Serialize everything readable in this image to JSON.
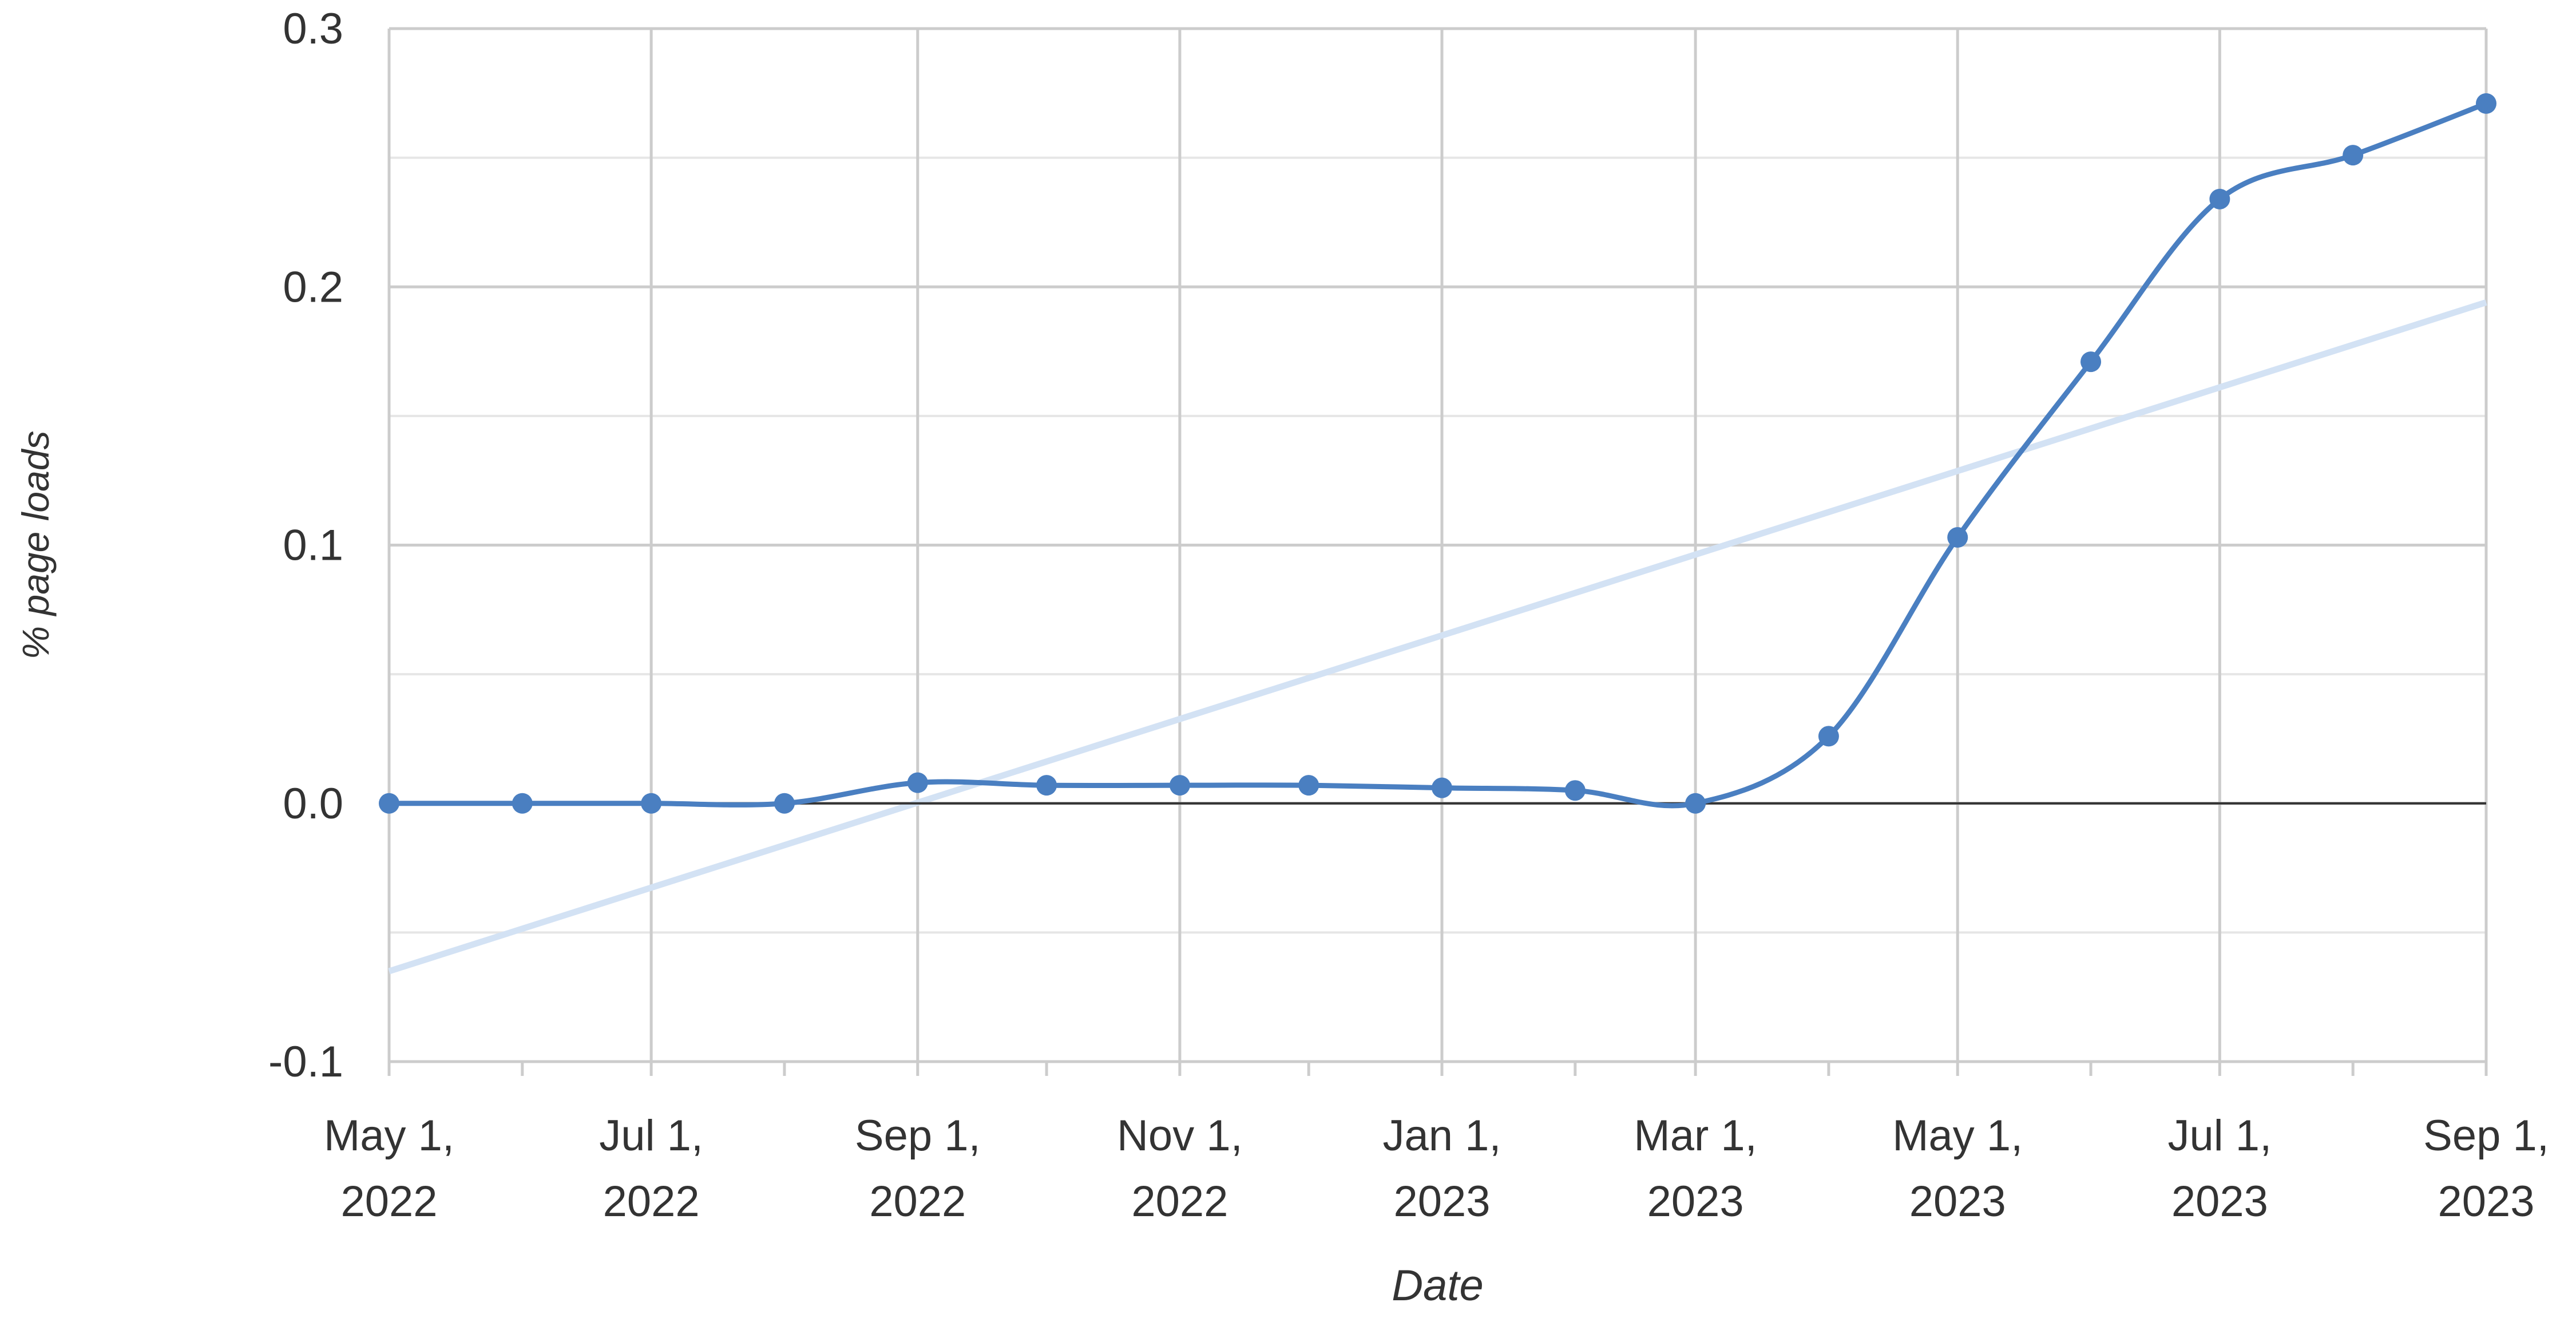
{
  "chart_data": {
    "type": "line",
    "title": "",
    "xlabel": "Date",
    "ylabel": "% page loads",
    "x": [
      "2022-05-01",
      "2022-06-01",
      "2022-07-01",
      "2022-08-01",
      "2022-09-01",
      "2022-10-01",
      "2022-11-01",
      "2022-12-01",
      "2023-01-01",
      "2023-02-01",
      "2023-03-01",
      "2023-04-01",
      "2023-05-01",
      "2023-06-01",
      "2023-07-01",
      "2023-08-01",
      "2023-09-01"
    ],
    "series": [
      {
        "values": [
          0.0,
          0.0,
          0.0,
          0.0,
          0.008,
          0.007,
          0.007,
          0.007,
          0.006,
          0.005,
          0.0,
          0.026,
          0.103,
          0.171,
          0.234,
          0.251,
          0.271
        ],
        "color": "#4a7fc1"
      }
    ],
    "trendline": {
      "start": {
        "x": "2022-05-01",
        "y": -0.065
      },
      "end": {
        "x": "2023-09-01",
        "y": 0.194
      },
      "color": "#d3e2f4"
    },
    "ylim": [
      -0.1,
      0.3
    ],
    "yticks": [
      "0.3",
      "0.2",
      "0.1",
      "0.0",
      "-0.1"
    ],
    "xticks": [
      {
        "line1": "May 1,",
        "line2": "2022",
        "date": "2022-05-01"
      },
      {
        "line1": "Jul 1,",
        "line2": "2022",
        "date": "2022-07-01"
      },
      {
        "line1": "Sep 1,",
        "line2": "2022",
        "date": "2022-09-01"
      },
      {
        "line1": "Nov 1,",
        "line2": "2022",
        "date": "2022-11-01"
      },
      {
        "line1": "Jan 1,",
        "line2": "2023",
        "date": "2023-01-01"
      },
      {
        "line1": "Mar 1,",
        "line2": "2023",
        "date": "2023-03-01"
      },
      {
        "line1": "May 1,",
        "line2": "2023",
        "date": "2023-05-01"
      },
      {
        "line1": "Jul 1,",
        "line2": "2023",
        "date": "2023-07-01"
      },
      {
        "line1": "Sep 1,",
        "line2": "2023",
        "date": "2023-09-01"
      }
    ],
    "grid": true,
    "legend": "none"
  }
}
